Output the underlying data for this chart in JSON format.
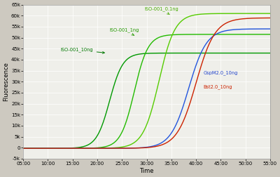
{
  "title": "",
  "xlabel": "Time",
  "ylabel": "Fluorescence",
  "bg_color": "#cdc9c0",
  "plot_bg_color": "#efefea",
  "grid_color": "#ffffff",
  "x_start_min": 5,
  "x_end_min": 55,
  "ylim": [
    -5000,
    65000
  ],
  "yticks": [
    -5000,
    0,
    5000,
    10000,
    15000,
    20000,
    25000,
    30000,
    35000,
    40000,
    45000,
    50000,
    55000,
    60000,
    65000
  ],
  "ytick_labels": [
    "-5k",
    "0",
    "5k",
    "10k",
    "15k",
    "20k",
    "25k",
    "30k",
    "35k",
    "40k",
    "45k",
    "50k",
    "55k",
    "60k",
    "65k"
  ],
  "series": [
    {
      "label": "ISO-001_10ng",
      "color": "#009900",
      "midpoint": 22.5,
      "steepness": 0.75,
      "y_min": -300,
      "y_max": 43000,
      "ann_x": 12.5,
      "ann_y": 44500,
      "arr_x": 22.0,
      "arr_y": 43000,
      "ann_color": "#007700"
    },
    {
      "label": "ISO-001_1ng",
      "color": "#22bb00",
      "midpoint": 27.5,
      "steepness": 0.72,
      "y_min": -300,
      "y_max": 51500,
      "ann_x": 22.5,
      "ann_y": 53500,
      "arr_x": 27.5,
      "arr_y": 51000,
      "ann_color": "#229900"
    },
    {
      "label": "ISO-001_0.1ng",
      "color": "#55cc00",
      "midpoint": 32.5,
      "steepness": 0.62,
      "y_min": -300,
      "y_max": 61000,
      "ann_x": 29.5,
      "ann_y": 63000,
      "arr_x": 35.0,
      "arr_y": 60000,
      "ann_color": "#44aa00"
    },
    {
      "label": "GspM2.0_10ng",
      "color": "#2255dd",
      "midpoint": 38.5,
      "steepness": 0.55,
      "y_min": -300,
      "y_max": 54000,
      "ann_x": 41.5,
      "ann_y": 34000,
      "arr_x": null,
      "arr_y": null,
      "ann_color": "#2244cc"
    },
    {
      "label": "Bst2.0_10ng",
      "color": "#cc2200",
      "midpoint": 40.0,
      "steepness": 0.52,
      "y_min": -300,
      "y_max": 59000,
      "ann_x": 41.5,
      "ann_y": 27500,
      "arr_x": null,
      "arr_y": null,
      "ann_color": "#cc2200"
    }
  ]
}
